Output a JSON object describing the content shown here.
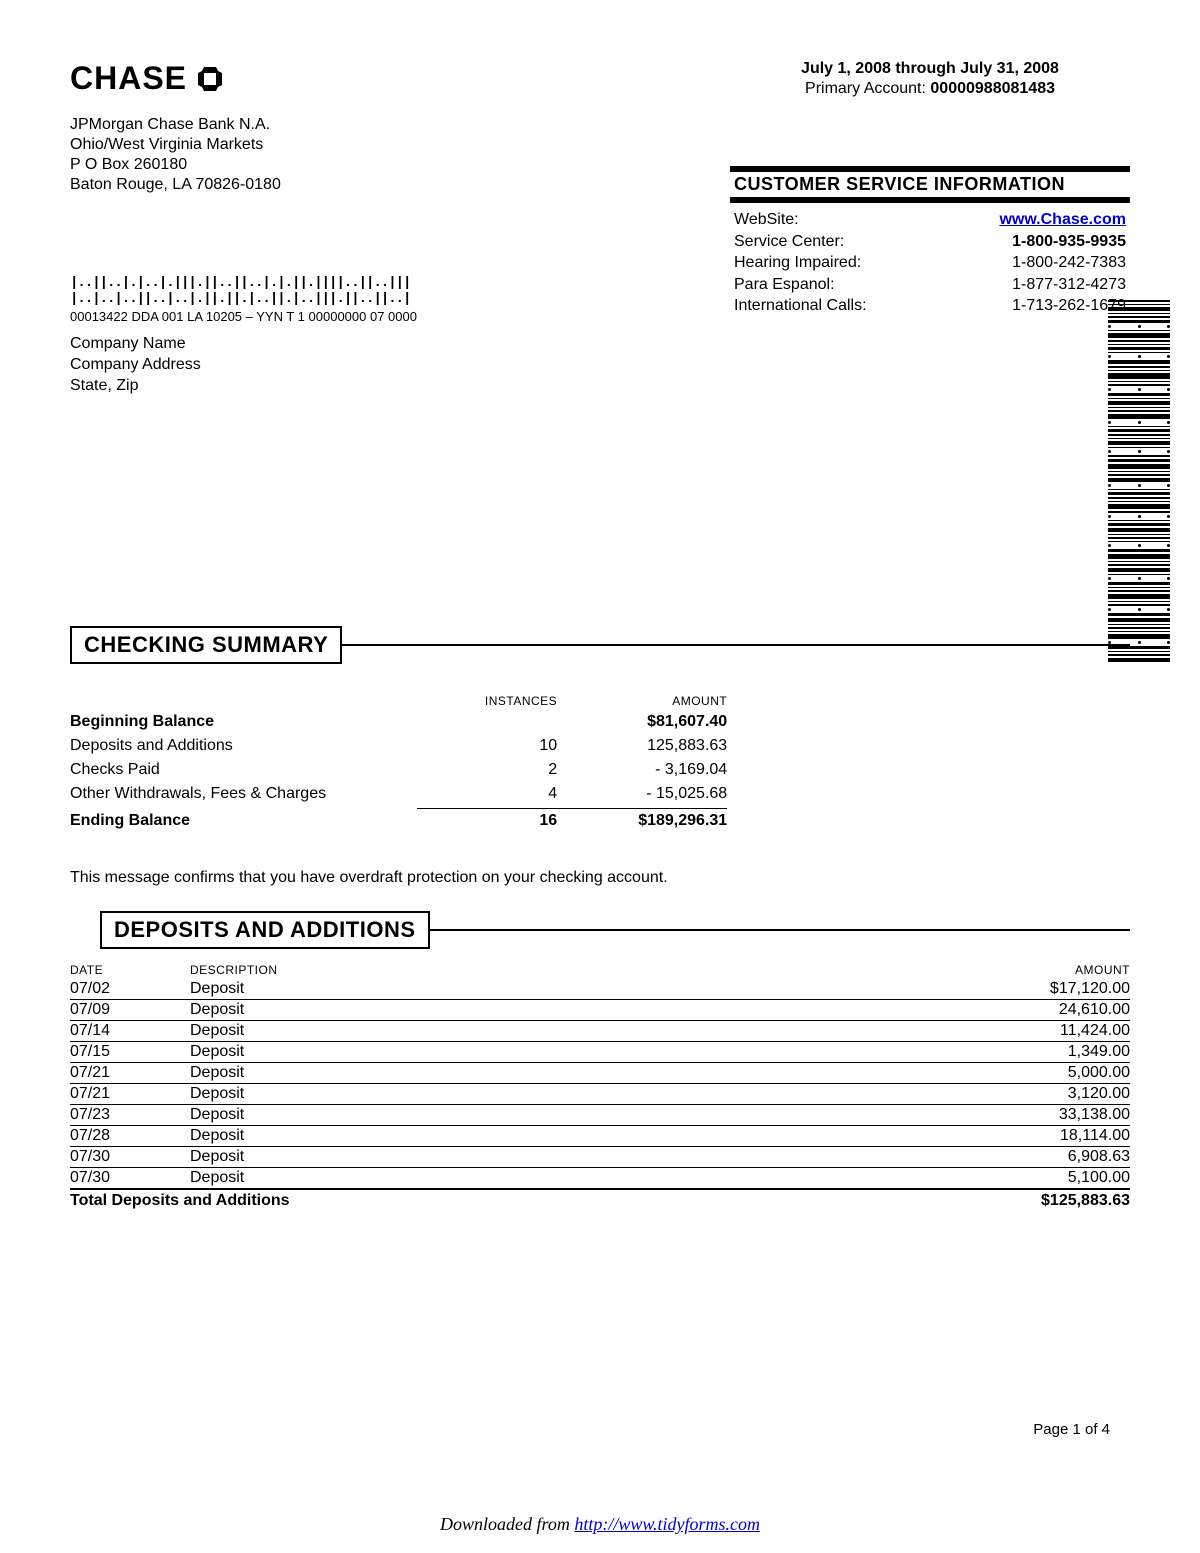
{
  "logo": {
    "text": "CHASE"
  },
  "bank_address": {
    "name": "JPMorgan Chase Bank N.A.",
    "market": "Ohio/West Virginia Markets",
    "pobox": "P O Box 260180",
    "city": "Baton Rouge, LA 70826-0180"
  },
  "header": {
    "period": "July 1, 2008 through July 31, 2008",
    "account_label": "Primary Account:",
    "account_number": "00000988081483"
  },
  "csi": {
    "title": "CUSTOMER SERVICE  INFORMATION",
    "rows": [
      {
        "label": "WebSite:",
        "value": "www.Chase.com",
        "link": true
      },
      {
        "label": "Service Center:",
        "value": "1-800-935-9935",
        "bold": true
      },
      {
        "label": "Hearing Impaired:",
        "value": "1-800-242-7383"
      },
      {
        "label": "Para Espanol:",
        "value": "1-877-312-4273"
      },
      {
        "label": "International Calls:",
        "value": "1-713-262-1679"
      }
    ]
  },
  "mail": {
    "postnet": "|..||..|.|..|.|||.||..||..|.|.||.||||..||..|||   |..|..|..||..|..|.||.||.|..||.|..|||.||..||..|",
    "code": "00013422 DDA 001 LA 10205 – YYN T 1 00000000 07 0000",
    "recipient": {
      "name": "Company Name",
      "addr": "Company Address",
      "region": "State, Zip"
    }
  },
  "summary": {
    "title": "CHECKING SUMMARY",
    "columns": {
      "instances": "INSTANCES",
      "amount": "AMOUNT"
    },
    "rows": [
      {
        "label": "Beginning Balance",
        "instances": "",
        "amount": "$81,607.40",
        "bold": true
      },
      {
        "label": "Deposits and Additions",
        "instances": "10",
        "amount": "125,883.63"
      },
      {
        "label": "Checks Paid",
        "instances": "2",
        "amount": "- 3,169.04"
      },
      {
        "label": "Other Withdrawals, Fees & Charges",
        "instances": "4",
        "amount": "- 15,025.68",
        "underline": true
      },
      {
        "label": "Ending Balance",
        "instances": "16",
        "amount": "$189,296.31",
        "bold": true
      }
    ]
  },
  "overdraft_message": "This message confirms that you have overdraft protection on your checking account.",
  "deposits": {
    "title": "DEPOSITS AND ADDITIONS",
    "columns": {
      "date": "DATE",
      "desc": "DESCRIPTION",
      "amount": "AMOUNT"
    },
    "rows": [
      {
        "date": "07/02",
        "desc": "Deposit",
        "amount": "$17,120.00"
      },
      {
        "date": "07/09",
        "desc": "Deposit",
        "amount": "24,610.00"
      },
      {
        "date": "07/14",
        "desc": "Deposit",
        "amount": "11,424.00"
      },
      {
        "date": "07/15",
        "desc": "Deposit",
        "amount": "1,349.00"
      },
      {
        "date": "07/21",
        "desc": "Deposit",
        "amount": "5,000.00"
      },
      {
        "date": "07/21",
        "desc": "Deposit",
        "amount": "3,120.00"
      },
      {
        "date": "07/23",
        "desc": "Deposit",
        "amount": "33,138.00"
      },
      {
        "date": "07/28",
        "desc": "Deposit",
        "amount": "18,114.00"
      },
      {
        "date": "07/30",
        "desc": "Deposit",
        "amount": "6,908.63"
      },
      {
        "date": "07/30",
        "desc": "Deposit",
        "amount": "5,100.00"
      }
    ],
    "total": {
      "label": "Total Deposits and Additions",
      "amount": "$125,883.63"
    }
  },
  "page_number": "Page 1 of 4",
  "footer": {
    "prefix": "Downloaded from ",
    "url": "http://www.tidyforms.com"
  },
  "barcode": {
    "pattern": [
      2,
      1,
      4,
      1,
      2,
      3,
      1,
      5,
      2,
      1,
      3,
      1,
      4,
      2,
      1,
      6,
      1,
      2,
      3,
      1,
      4,
      1,
      2,
      5,
      1,
      3,
      2,
      1,
      4,
      1,
      2,
      3,
      5,
      1,
      2,
      4,
      1,
      3,
      2,
      1,
      5,
      2,
      1,
      3,
      4,
      1,
      2,
      1,
      3,
      5,
      1,
      2,
      4,
      1,
      3,
      1,
      2,
      5,
      1,
      2,
      3,
      4,
      1,
      2,
      1,
      5,
      3,
      1,
      2,
      4
    ]
  }
}
